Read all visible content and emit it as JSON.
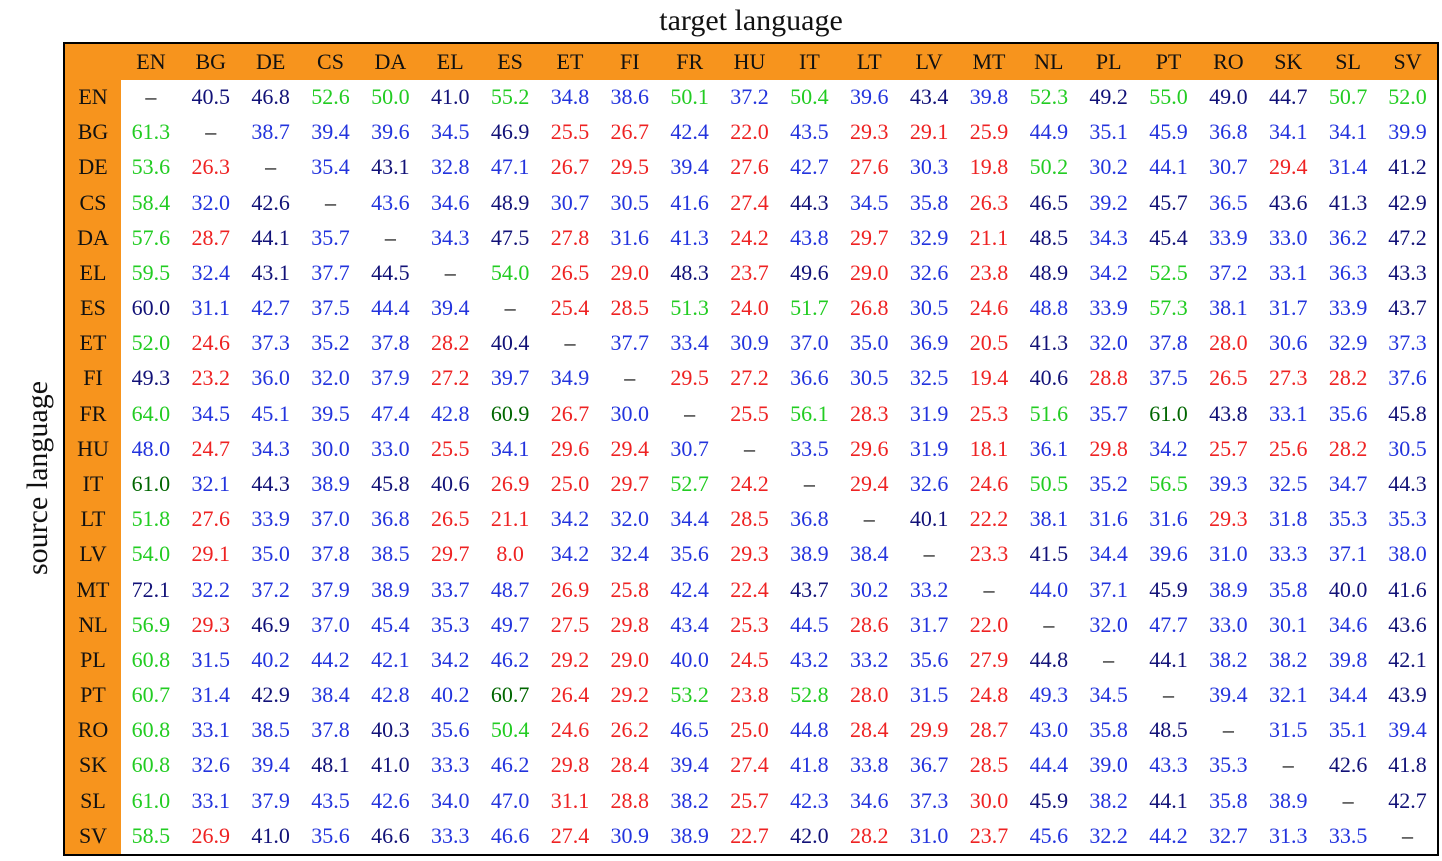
{
  "title": "target language",
  "side_label": "source language",
  "table": {
    "columns": [
      "EN",
      "BG",
      "DE",
      "CS",
      "DA",
      "EL",
      "ES",
      "ET",
      "FI",
      "FR",
      "HU",
      "IT",
      "LT",
      "LV",
      "MT",
      "NL",
      "PL",
      "PT",
      "RO",
      "SK",
      "SL",
      "SV"
    ],
    "rows": [
      {
        "label": "EN",
        "cells": [
          "–",
          "40.5",
          "46.8",
          "52.6",
          "50.0",
          "41.0",
          "55.2",
          "34.8",
          "38.6",
          "50.1",
          "37.2",
          "50.4",
          "39.6",
          "43.4",
          "39.8",
          "52.3",
          "49.2",
          "55.0",
          "49.0",
          "44.7",
          "50.7",
          "52.0"
        ],
        "colors": [
          "#000",
          "#117",
          "#117",
          "#2c2",
          "#2c2",
          "#117",
          "#2c2",
          "#23d",
          "#23d",
          "#2c2",
          "#23d",
          "#2c2",
          "#23d",
          "#117",
          "#23d",
          "#2c2",
          "#117",
          "#2c2",
          "#117",
          "#117",
          "#2c2",
          "#2c2"
        ]
      },
      {
        "label": "BG",
        "cells": [
          "61.3",
          "–",
          "38.7",
          "39.4",
          "39.6",
          "34.5",
          "46.9",
          "25.5",
          "26.7",
          "42.4",
          "22.0",
          "43.5",
          "29.3",
          "29.1",
          "25.9",
          "44.9",
          "35.1",
          "45.9",
          "36.8",
          "34.1",
          "34.1",
          "39.9"
        ],
        "colors": [
          "#2c2",
          "#000",
          "#23d",
          "#23d",
          "#23d",
          "#23d",
          "#117",
          "#e22",
          "#e22",
          "#23d",
          "#e22",
          "#23d",
          "#e22",
          "#e22",
          "#e22",
          "#23d",
          "#23d",
          "#23d",
          "#23d",
          "#23d",
          "#23d",
          "#23d"
        ]
      },
      {
        "label": "DE",
        "cells": [
          "53.6",
          "26.3",
          "–",
          "35.4",
          "43.1",
          "32.8",
          "47.1",
          "26.7",
          "29.5",
          "39.4",
          "27.6",
          "42.7",
          "27.6",
          "30.3",
          "19.8",
          "50.2",
          "30.2",
          "44.1",
          "30.7",
          "29.4",
          "31.4",
          "41.2"
        ],
        "colors": [
          "#2c2",
          "#e22",
          "#000",
          "#23d",
          "#117",
          "#23d",
          "#23d",
          "#e22",
          "#e22",
          "#23d",
          "#e22",
          "#23d",
          "#e22",
          "#23d",
          "#e22",
          "#2c2",
          "#23d",
          "#23d",
          "#23d",
          "#e22",
          "#23d",
          "#117"
        ]
      },
      {
        "label": "CS",
        "cells": [
          "58.4",
          "32.0",
          "42.6",
          "–",
          "43.6",
          "34.6",
          "48.9",
          "30.7",
          "30.5",
          "41.6",
          "27.4",
          "44.3",
          "34.5",
          "35.8",
          "26.3",
          "46.5",
          "39.2",
          "45.7",
          "36.5",
          "43.6",
          "41.3",
          "42.9"
        ],
        "colors": [
          "#2c2",
          "#23d",
          "#117",
          "#000",
          "#23d",
          "#23d",
          "#117",
          "#23d",
          "#23d",
          "#23d",
          "#e22",
          "#117",
          "#23d",
          "#23d",
          "#e22",
          "#117",
          "#23d",
          "#117",
          "#23d",
          "#117",
          "#117",
          "#117"
        ]
      },
      {
        "label": "DA",
        "cells": [
          "57.6",
          "28.7",
          "44.1",
          "35.7",
          "–",
          "34.3",
          "47.5",
          "27.8",
          "31.6",
          "41.3",
          "24.2",
          "43.8",
          "29.7",
          "32.9",
          "21.1",
          "48.5",
          "34.3",
          "45.4",
          "33.9",
          "33.0",
          "36.2",
          "47.2"
        ],
        "colors": [
          "#2c2",
          "#e22",
          "#117",
          "#23d",
          "#000",
          "#23d",
          "#117",
          "#e22",
          "#23d",
          "#23d",
          "#e22",
          "#23d",
          "#e22",
          "#23d",
          "#e22",
          "#117",
          "#23d",
          "#117",
          "#23d",
          "#23d",
          "#23d",
          "#117"
        ]
      },
      {
        "label": "EL",
        "cells": [
          "59.5",
          "32.4",
          "43.1",
          "37.7",
          "44.5",
          "–",
          "54.0",
          "26.5",
          "29.0",
          "48.3",
          "23.7",
          "49.6",
          "29.0",
          "32.6",
          "23.8",
          "48.9",
          "34.2",
          "52.5",
          "37.2",
          "33.1",
          "36.3",
          "43.3"
        ],
        "colors": [
          "#2c2",
          "#23d",
          "#117",
          "#23d",
          "#117",
          "#000",
          "#2c2",
          "#e22",
          "#e22",
          "#117",
          "#e22",
          "#117",
          "#e22",
          "#23d",
          "#e22",
          "#117",
          "#23d",
          "#2c2",
          "#23d",
          "#23d",
          "#23d",
          "#117"
        ]
      },
      {
        "label": "ES",
        "cells": [
          "60.0",
          "31.1",
          "42.7",
          "37.5",
          "44.4",
          "39.4",
          "–",
          "25.4",
          "28.5",
          "51.3",
          "24.0",
          "51.7",
          "26.8",
          "30.5",
          "24.6",
          "48.8",
          "33.9",
          "57.3",
          "38.1",
          "31.7",
          "33.9",
          "43.7"
        ],
        "colors": [
          "#117",
          "#23d",
          "#23d",
          "#23d",
          "#23d",
          "#23d",
          "#000",
          "#e22",
          "#e22",
          "#2c2",
          "#e22",
          "#2c2",
          "#e22",
          "#23d",
          "#e22",
          "#23d",
          "#23d",
          "#2c2",
          "#23d",
          "#23d",
          "#23d",
          "#117"
        ]
      },
      {
        "label": "ET",
        "cells": [
          "52.0",
          "24.6",
          "37.3",
          "35.2",
          "37.8",
          "28.2",
          "40.4",
          "–",
          "37.7",
          "33.4",
          "30.9",
          "37.0",
          "35.0",
          "36.9",
          "20.5",
          "41.3",
          "32.0",
          "37.8",
          "28.0",
          "30.6",
          "32.9",
          "37.3"
        ],
        "colors": [
          "#2c2",
          "#e22",
          "#23d",
          "#23d",
          "#23d",
          "#e22",
          "#117",
          "#000",
          "#23d",
          "#23d",
          "#23d",
          "#23d",
          "#23d",
          "#23d",
          "#e22",
          "#117",
          "#23d",
          "#23d",
          "#e22",
          "#23d",
          "#23d",
          "#23d"
        ]
      },
      {
        "label": "FI",
        "cells": [
          "49.3",
          "23.2",
          "36.0",
          "32.0",
          "37.9",
          "27.2",
          "39.7",
          "34.9",
          "–",
          "29.5",
          "27.2",
          "36.6",
          "30.5",
          "32.5",
          "19.4",
          "40.6",
          "28.8",
          "37.5",
          "26.5",
          "27.3",
          "28.2",
          "37.6"
        ],
        "colors": [
          "#117",
          "#e22",
          "#23d",
          "#23d",
          "#23d",
          "#e22",
          "#23d",
          "#23d",
          "#000",
          "#e22",
          "#e22",
          "#23d",
          "#23d",
          "#23d",
          "#e22",
          "#117",
          "#e22",
          "#23d",
          "#e22",
          "#e22",
          "#e22",
          "#23d"
        ]
      },
      {
        "label": "FR",
        "cells": [
          "64.0",
          "34.5",
          "45.1",
          "39.5",
          "47.4",
          "42.8",
          "60.9",
          "26.7",
          "30.0",
          "–",
          "25.5",
          "56.1",
          "28.3",
          "31.9",
          "25.3",
          "51.6",
          "35.7",
          "61.0",
          "43.8",
          "33.1",
          "35.6",
          "45.8"
        ],
        "colors": [
          "#2c2",
          "#23d",
          "#23d",
          "#23d",
          "#23d",
          "#23d",
          "#060",
          "#e22",
          "#23d",
          "#000",
          "#e22",
          "#2c2",
          "#e22",
          "#23d",
          "#e22",
          "#2c2",
          "#23d",
          "#060",
          "#117",
          "#23d",
          "#23d",
          "#117"
        ]
      },
      {
        "label": "HU",
        "cells": [
          "48.0",
          "24.7",
          "34.3",
          "30.0",
          "33.0",
          "25.5",
          "34.1",
          "29.6",
          "29.4",
          "30.7",
          "–",
          "33.5",
          "29.6",
          "31.9",
          "18.1",
          "36.1",
          "29.8",
          "34.2",
          "25.7",
          "25.6",
          "28.2",
          "30.5"
        ],
        "colors": [
          "#23d",
          "#e22",
          "#23d",
          "#23d",
          "#23d",
          "#e22",
          "#23d",
          "#e22",
          "#e22",
          "#23d",
          "#000",
          "#23d",
          "#e22",
          "#23d",
          "#e22",
          "#23d",
          "#e22",
          "#23d",
          "#e22",
          "#e22",
          "#e22",
          "#23d"
        ]
      },
      {
        "label": "IT",
        "cells": [
          "61.0",
          "32.1",
          "44.3",
          "38.9",
          "45.8",
          "40.6",
          "26.9",
          "25.0",
          "29.7",
          "52.7",
          "24.2",
          "–",
          "29.4",
          "32.6",
          "24.6",
          "50.5",
          "35.2",
          "56.5",
          "39.3",
          "32.5",
          "34.7",
          "44.3"
        ],
        "colors": [
          "#060",
          "#23d",
          "#117",
          "#23d",
          "#117",
          "#117",
          "#e22",
          "#e22",
          "#e22",
          "#2c2",
          "#e22",
          "#000",
          "#e22",
          "#23d",
          "#e22",
          "#2c2",
          "#23d",
          "#2c2",
          "#23d",
          "#23d",
          "#23d",
          "#117"
        ]
      },
      {
        "label": "LT",
        "cells": [
          "51.8",
          "27.6",
          "33.9",
          "37.0",
          "36.8",
          "26.5",
          "21.1",
          "34.2",
          "32.0",
          "34.4",
          "28.5",
          "36.8",
          "–",
          "40.1",
          "22.2",
          "38.1",
          "31.6",
          "31.6",
          "29.3",
          "31.8",
          "35.3",
          "35.3"
        ],
        "colors": [
          "#2c2",
          "#e22",
          "#23d",
          "#23d",
          "#23d",
          "#e22",
          "#e22",
          "#23d",
          "#23d",
          "#23d",
          "#e22",
          "#23d",
          "#000",
          "#117",
          "#e22",
          "#23d",
          "#23d",
          "#23d",
          "#e22",
          "#23d",
          "#23d",
          "#23d"
        ]
      },
      {
        "label": "LV",
        "cells": [
          "54.0",
          "29.1",
          "35.0",
          "37.8",
          "38.5",
          "29.7",
          "8.0",
          "34.2",
          "32.4",
          "35.6",
          "29.3",
          "38.9",
          "38.4",
          "–",
          "23.3",
          "41.5",
          "34.4",
          "39.6",
          "31.0",
          "33.3",
          "37.1",
          "38.0"
        ],
        "colors": [
          "#2c2",
          "#e22",
          "#23d",
          "#23d",
          "#23d",
          "#e22",
          "#e22",
          "#23d",
          "#23d",
          "#23d",
          "#e22",
          "#23d",
          "#23d",
          "#000",
          "#e22",
          "#117",
          "#23d",
          "#23d",
          "#23d",
          "#23d",
          "#23d",
          "#23d"
        ]
      },
      {
        "label": "MT",
        "cells": [
          "72.1",
          "32.2",
          "37.2",
          "37.9",
          "38.9",
          "33.7",
          "48.7",
          "26.9",
          "25.8",
          "42.4",
          "22.4",
          "43.7",
          "30.2",
          "33.2",
          "–",
          "44.0",
          "37.1",
          "45.9",
          "38.9",
          "35.8",
          "40.0",
          "41.6"
        ],
        "colors": [
          "#117",
          "#23d",
          "#23d",
          "#23d",
          "#23d",
          "#23d",
          "#23d",
          "#e22",
          "#e22",
          "#23d",
          "#e22",
          "#117",
          "#23d",
          "#23d",
          "#000",
          "#23d",
          "#23d",
          "#117",
          "#23d",
          "#23d",
          "#117",
          "#117"
        ]
      },
      {
        "label": "NL",
        "cells": [
          "56.9",
          "29.3",
          "46.9",
          "37.0",
          "45.4",
          "35.3",
          "49.7",
          "27.5",
          "29.8",
          "43.4",
          "25.3",
          "44.5",
          "28.6",
          "31.7",
          "22.0",
          "–",
          "32.0",
          "47.7",
          "33.0",
          "30.1",
          "34.6",
          "43.6"
        ],
        "colors": [
          "#2c2",
          "#e22",
          "#117",
          "#23d",
          "#23d",
          "#23d",
          "#23d",
          "#e22",
          "#e22",
          "#23d",
          "#e22",
          "#23d",
          "#e22",
          "#23d",
          "#e22",
          "#000",
          "#23d",
          "#23d",
          "#23d",
          "#23d",
          "#23d",
          "#117"
        ]
      },
      {
        "label": "PL",
        "cells": [
          "60.8",
          "31.5",
          "40.2",
          "44.2",
          "42.1",
          "34.2",
          "46.2",
          "29.2",
          "29.0",
          "40.0",
          "24.5",
          "43.2",
          "33.2",
          "35.6",
          "27.9",
          "44.8",
          "–",
          "44.1",
          "38.2",
          "38.2",
          "39.8",
          "42.1"
        ],
        "colors": [
          "#2c2",
          "#23d",
          "#23d",
          "#23d",
          "#23d",
          "#23d",
          "#23d",
          "#e22",
          "#e22",
          "#23d",
          "#e22",
          "#23d",
          "#23d",
          "#23d",
          "#e22",
          "#117",
          "#000",
          "#117",
          "#23d",
          "#23d",
          "#23d",
          "#117"
        ]
      },
      {
        "label": "PT",
        "cells": [
          "60.7",
          "31.4",
          "42.9",
          "38.4",
          "42.8",
          "40.2",
          "60.7",
          "26.4",
          "29.2",
          "53.2",
          "23.8",
          "52.8",
          "28.0",
          "31.5",
          "24.8",
          "49.3",
          "34.5",
          "–",
          "39.4",
          "32.1",
          "34.4",
          "43.9"
        ],
        "colors": [
          "#2c2",
          "#23d",
          "#117",
          "#23d",
          "#23d",
          "#23d",
          "#060",
          "#e22",
          "#e22",
          "#2c2",
          "#e22",
          "#2c2",
          "#e22",
          "#23d",
          "#e22",
          "#23d",
          "#23d",
          "#000",
          "#23d",
          "#23d",
          "#23d",
          "#117"
        ]
      },
      {
        "label": "RO",
        "cells": [
          "60.8",
          "33.1",
          "38.5",
          "37.8",
          "40.3",
          "35.6",
          "50.4",
          "24.6",
          "26.2",
          "46.5",
          "25.0",
          "44.8",
          "28.4",
          "29.9",
          "28.7",
          "43.0",
          "35.8",
          "48.5",
          "–",
          "31.5",
          "35.1",
          "39.4"
        ],
        "colors": [
          "#2c2",
          "#23d",
          "#23d",
          "#23d",
          "#117",
          "#23d",
          "#2c2",
          "#e22",
          "#e22",
          "#23d",
          "#e22",
          "#23d",
          "#e22",
          "#e22",
          "#e22",
          "#23d",
          "#23d",
          "#117",
          "#000",
          "#23d",
          "#23d",
          "#23d"
        ]
      },
      {
        "label": "SK",
        "cells": [
          "60.8",
          "32.6",
          "39.4",
          "48.1",
          "41.0",
          "33.3",
          "46.2",
          "29.8",
          "28.4",
          "39.4",
          "27.4",
          "41.8",
          "33.8",
          "36.7",
          "28.5",
          "44.4",
          "39.0",
          "43.3",
          "35.3",
          "–",
          "42.6",
          "41.8"
        ],
        "colors": [
          "#2c2",
          "#23d",
          "#23d",
          "#117",
          "#117",
          "#23d",
          "#23d",
          "#e22",
          "#e22",
          "#23d",
          "#e22",
          "#23d",
          "#23d",
          "#23d",
          "#e22",
          "#23d",
          "#23d",
          "#23d",
          "#23d",
          "#000",
          "#117",
          "#117"
        ]
      },
      {
        "label": "SL",
        "cells": [
          "61.0",
          "33.1",
          "37.9",
          "43.5",
          "42.6",
          "34.0",
          "47.0",
          "31.1",
          "28.8",
          "38.2",
          "25.7",
          "42.3",
          "34.6",
          "37.3",
          "30.0",
          "45.9",
          "38.2",
          "44.1",
          "35.8",
          "38.9",
          "–",
          "42.7"
        ],
        "colors": [
          "#2c2",
          "#23d",
          "#23d",
          "#23d",
          "#23d",
          "#23d",
          "#23d",
          "#e22",
          "#e22",
          "#23d",
          "#e22",
          "#23d",
          "#23d",
          "#23d",
          "#e22",
          "#117",
          "#23d",
          "#117",
          "#23d",
          "#23d",
          "#000",
          "#117"
        ]
      },
      {
        "label": "SV",
        "cells": [
          "58.5",
          "26.9",
          "41.0",
          "35.6",
          "46.6",
          "33.3",
          "46.6",
          "27.4",
          "30.9",
          "38.9",
          "22.7",
          "42.0",
          "28.2",
          "31.0",
          "23.7",
          "45.6",
          "32.2",
          "44.2",
          "32.7",
          "31.3",
          "33.5",
          "–"
        ],
        "colors": [
          "#2c2",
          "#e22",
          "#117",
          "#23d",
          "#117",
          "#23d",
          "#23d",
          "#e22",
          "#23d",
          "#23d",
          "#e22",
          "#117",
          "#e22",
          "#23d",
          "#e22",
          "#23d",
          "#23d",
          "#23d",
          "#23d",
          "#23d",
          "#23d",
          "#000"
        ]
      }
    ]
  }
}
